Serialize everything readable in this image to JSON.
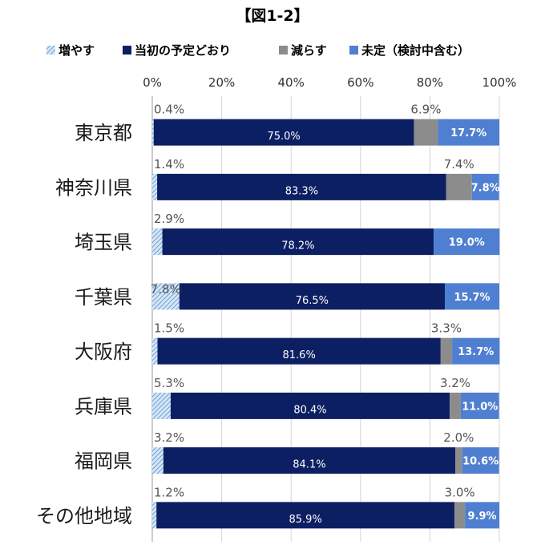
{
  "chart_data": {
    "type": "bar",
    "orientation": "horizontal",
    "stacked": true,
    "title": "【図1-2】",
    "xlim": [
      0,
      100
    ],
    "x_ticks": [
      "0%",
      "20%",
      "40%",
      "60%",
      "80%",
      "100%"
    ],
    "grid": true,
    "legend_position": "top",
    "categories": [
      "東京都",
      "神奈川県",
      "埼玉県",
      "千葉県",
      "大阪府",
      "兵庫県",
      "福岡県",
      "その他地域"
    ],
    "series": [
      {
        "name": "増やす",
        "color": "#9dc3e6",
        "pattern": "hatched",
        "values": [
          0.4,
          1.4,
          2.9,
          7.8,
          1.5,
          5.3,
          3.2,
          1.2
        ],
        "labels": [
          "0.4%",
          "1.4%",
          "2.9%",
          "7.8%",
          "1.5%",
          "5.3%",
          "3.2%",
          "1.2%"
        ]
      },
      {
        "name": "当初の予定どおり",
        "color": "#0d1f63",
        "values": [
          75.0,
          83.3,
          78.2,
          76.5,
          81.6,
          80.4,
          84.1,
          85.9
        ],
        "labels": [
          "75.0%",
          "83.3%",
          "78.2%",
          "76.5%",
          "81.6%",
          "80.4%",
          "84.1%",
          "85.9%"
        ]
      },
      {
        "name": "減らす",
        "color": "#8c8c8c",
        "values": [
          6.9,
          7.4,
          0,
          0,
          3.3,
          3.2,
          2.0,
          3.0
        ],
        "labels": [
          "6.9%",
          "7.4%",
          "",
          "",
          "3.3%",
          "3.2%",
          "2.0%",
          "3.0%"
        ]
      },
      {
        "name": "未定（検討中含む）",
        "color": "#4f7fd0",
        "values": [
          17.7,
          7.8,
          19.0,
          15.7,
          13.7,
          11.0,
          10.6,
          9.9
        ],
        "labels": [
          "17.7%",
          "7.8%",
          "19.0%",
          "15.7%",
          "13.7%",
          "11.0%",
          "10.6%",
          "9.9%"
        ]
      }
    ]
  }
}
